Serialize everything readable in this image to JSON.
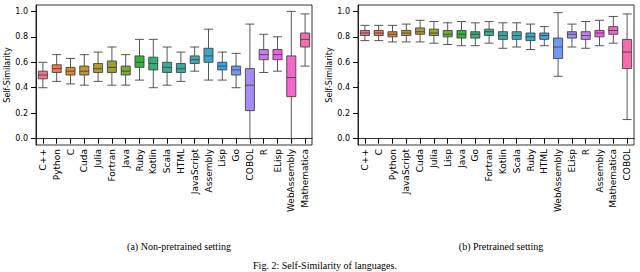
{
  "caption": "Fig. 2: Self-Similarity of languages.",
  "chart_data": [
    {
      "type": "boxplot",
      "title": "(a) Non-pretrained setting",
      "y_label": "Self-Similarity",
      "categories": [
        "C++",
        "Python",
        "C",
        "Cuda",
        "Julia",
        "Fortran",
        "Java",
        "Ruby",
        "Kotlin",
        "Scala",
        "HTML",
        "JavaScript",
        "Assembly",
        "Lisp",
        "Go",
        "COBOL",
        "R",
        "ELisp",
        "WebAssembly",
        "Mathematica"
      ],
      "values": [
        [
          0.4,
          0.47,
          0.5,
          0.53,
          0.6
        ],
        [
          0.45,
          0.52,
          0.55,
          0.58,
          0.66
        ],
        [
          0.43,
          0.5,
          0.53,
          0.56,
          0.63
        ],
        [
          0.42,
          0.5,
          0.53,
          0.57,
          0.66
        ],
        [
          0.45,
          0.52,
          0.55,
          0.59,
          0.68
        ],
        [
          0.42,
          0.52,
          0.56,
          0.61,
          0.72
        ],
        [
          0.42,
          0.5,
          0.53,
          0.57,
          0.66
        ],
        [
          0.46,
          0.56,
          0.6,
          0.65,
          0.78
        ],
        [
          0.4,
          0.54,
          0.59,
          0.64,
          0.78
        ],
        [
          0.42,
          0.52,
          0.56,
          0.6,
          0.72
        ],
        [
          0.45,
          0.52,
          0.55,
          0.59,
          0.68
        ],
        [
          0.53,
          0.59,
          0.62,
          0.65,
          0.72
        ],
        [
          0.46,
          0.6,
          0.65,
          0.71,
          0.86
        ],
        [
          0.46,
          0.54,
          0.57,
          0.6,
          0.68
        ],
        [
          0.4,
          0.5,
          0.54,
          0.57,
          0.67
        ],
        [
          0.0,
          0.22,
          0.42,
          0.55,
          0.9
        ],
        [
          0.52,
          0.62,
          0.66,
          0.7,
          0.82
        ],
        [
          0.53,
          0.62,
          0.66,
          0.7,
          0.8
        ],
        [
          0.0,
          0.33,
          0.48,
          0.65,
          1.0
        ],
        [
          0.57,
          0.72,
          0.78,
          0.83,
          0.98
        ]
      ],
      "colors": [
        "#f77189",
        "#f7754f",
        "#dc8932",
        "#c39532",
        "#ae9d31",
        "#97a431",
        "#77ab31",
        "#31b33e",
        "#33b07a",
        "#35ae93",
        "#36ada4",
        "#37abb4",
        "#38a9c5",
        "#3ba3ec",
        "#6e9af4",
        "#a48cf4",
        "#cc7af4",
        "#f45deb",
        "#f565cc",
        "#f66bad"
      ],
      "ylim": [
        -0.05,
        1.05
      ],
      "yticks": [
        {
          "value": 0,
          "label": "0.0"
        },
        {
          "value": 0.2,
          "label": "0.2"
        },
        {
          "value": 0.4,
          "label": "0.4"
        },
        {
          "value": 0.6,
          "label": "0.6"
        },
        {
          "value": 0.8,
          "label": "0.8"
        },
        {
          "value": 1,
          "label": "1.0"
        }
      ],
      "grid": false
    },
    {
      "type": "boxplot",
      "title": "(b) Pretrained setting",
      "y_label": "Self-Similarity",
      "categories": [
        "C++",
        "C",
        "Python",
        "JavaScript",
        "Cuda",
        "Julia",
        "Lisp",
        "Java",
        "Go",
        "Fortran",
        "Kotlin",
        "Scala",
        "Ruby",
        "HTML",
        "WebAssembly",
        "ELisp",
        "R",
        "Assembly",
        "Mathematica",
        "COBOL"
      ],
      "values": [
        [
          0.77,
          0.81,
          0.83,
          0.85,
          0.89
        ],
        [
          0.77,
          0.81,
          0.83,
          0.85,
          0.89
        ],
        [
          0.76,
          0.8,
          0.82,
          0.84,
          0.89
        ],
        [
          0.76,
          0.81,
          0.83,
          0.85,
          0.9
        ],
        [
          0.76,
          0.82,
          0.84,
          0.87,
          0.93
        ],
        [
          0.75,
          0.81,
          0.83,
          0.86,
          0.92
        ],
        [
          0.74,
          0.8,
          0.82,
          0.85,
          0.91
        ],
        [
          0.73,
          0.79,
          0.82,
          0.85,
          0.92
        ],
        [
          0.73,
          0.79,
          0.82,
          0.84,
          0.91
        ],
        [
          0.75,
          0.81,
          0.84,
          0.86,
          0.92
        ],
        [
          0.71,
          0.78,
          0.81,
          0.84,
          0.91
        ],
        [
          0.72,
          0.78,
          0.81,
          0.84,
          0.91
        ],
        [
          0.7,
          0.77,
          0.8,
          0.83,
          0.9
        ],
        [
          0.73,
          0.78,
          0.81,
          0.83,
          0.88
        ],
        [
          0.49,
          0.63,
          0.72,
          0.79,
          0.99
        ],
        [
          0.72,
          0.79,
          0.82,
          0.84,
          0.9
        ],
        [
          0.71,
          0.78,
          0.81,
          0.84,
          0.92
        ],
        [
          0.73,
          0.8,
          0.83,
          0.85,
          0.93
        ],
        [
          0.75,
          0.82,
          0.85,
          0.88,
          0.96
        ],
        [
          0.15,
          0.55,
          0.68,
          0.78,
          0.98
        ]
      ],
      "colors": [
        "#f77189",
        "#f7754f",
        "#dc8932",
        "#c39532",
        "#ae9d31",
        "#97a431",
        "#77ab31",
        "#31b33e",
        "#33b07a",
        "#35ae93",
        "#36ada4",
        "#37abb4",
        "#38a9c5",
        "#3ba3ec",
        "#6e9af4",
        "#a48cf4",
        "#cc7af4",
        "#f45deb",
        "#f565cc",
        "#f66bad"
      ],
      "ylim": [
        -0.05,
        1.05
      ],
      "yticks": [
        {
          "value": 0,
          "label": "0.0"
        },
        {
          "value": 0.2,
          "label": "0.2"
        },
        {
          "value": 0.4,
          "label": "0.4"
        },
        {
          "value": 0.6,
          "label": "0.6"
        },
        {
          "value": 0.8,
          "label": "0.8"
        },
        {
          "value": 1,
          "label": "1.0"
        }
      ],
      "grid": false
    }
  ]
}
